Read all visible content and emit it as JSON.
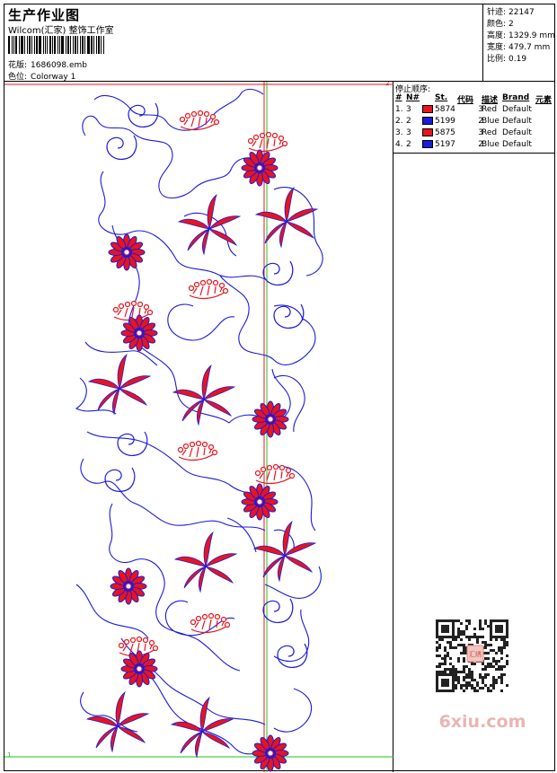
{
  "header": {
    "title": "生产作业图",
    "studio": "Wilcom(汇家) 整饰工作室",
    "pattern_label": "花版:",
    "pattern_value": "1686098.emb",
    "colorway_label": "色位:",
    "colorway_value": "Colorway 1"
  },
  "stats": {
    "stitches_label": "针迹:",
    "stitches_value": "22147",
    "colors_label": "颜色:",
    "colors_value": "2",
    "height_label": "高度:",
    "height_value": "1329.9 mm",
    "width_label": "宽度:",
    "width_value": "479.7 mm",
    "scale_label": "比例:",
    "scale_value": "0.19"
  },
  "stop_sequence": {
    "title": "停止顺序:",
    "columns": [
      "#",
      "N#",
      "St.",
      "代码",
      "描述",
      "Brand",
      "元素"
    ],
    "rows": [
      {
        "idx": "1.",
        "n": "3",
        "st": "5874",
        "code": "3",
        "desc": "Red",
        "brand": "Default",
        "color": "#e8141c"
      },
      {
        "idx": "2.",
        "n": "2",
        "st": "5199",
        "code": "2",
        "desc": "Blue",
        "brand": "Default",
        "color": "#1a1ae0"
      },
      {
        "idx": "3.",
        "n": "3",
        "st": "5875",
        "code": "3",
        "desc": "Red",
        "brand": "Default",
        "color": "#e8141c"
      },
      {
        "idx": "4.",
        "n": "2",
        "st": "5197",
        "code": "2",
        "desc": "Blue",
        "brand": "Default",
        "color": "#1a1ae0"
      }
    ]
  },
  "canvas": {
    "marker_top": "2",
    "marker_bottom": "1",
    "colors": {
      "red": "#e8141c",
      "blue": "#1a1ae0",
      "guide_green": "#1ec41e",
      "guide_red": "#e8141c"
    }
  },
  "watermark": {
    "logo_text": "6xiu.com",
    "qr_center_text": "汇绣"
  }
}
